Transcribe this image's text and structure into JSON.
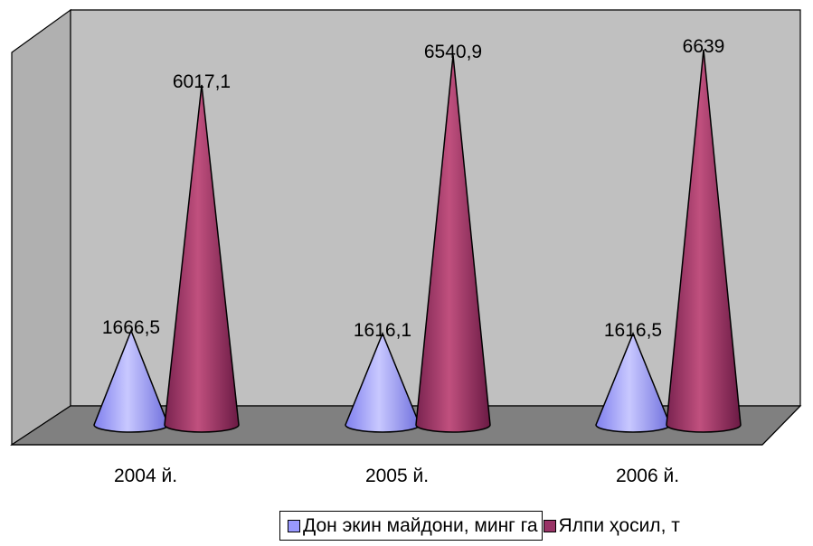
{
  "chart_data": {
    "type": "bar",
    "style": "3d-cone",
    "categories": [
      "2004 й.",
      "2005 й.",
      "2006 й."
    ],
    "series": [
      {
        "name": "Дон экин майдони, минг га",
        "values": [
          1666.5,
          1616.1,
          1616.5
        ],
        "labels": [
          "1666,5",
          "1616,1",
          "1616,5"
        ],
        "color": "#9999ff"
      },
      {
        "name": "Ялпи ҳосил, т",
        "values": [
          6017.1,
          6540.9,
          6639
        ],
        "labels": [
          "6017,1",
          "6540,9",
          "6639"
        ],
        "color": "#993366"
      }
    ],
    "ylim": [
      0,
      7000
    ],
    "grid": false,
    "legend": "bottom",
    "wall_color": "#c0c0c0",
    "floor_color": "#808080"
  }
}
